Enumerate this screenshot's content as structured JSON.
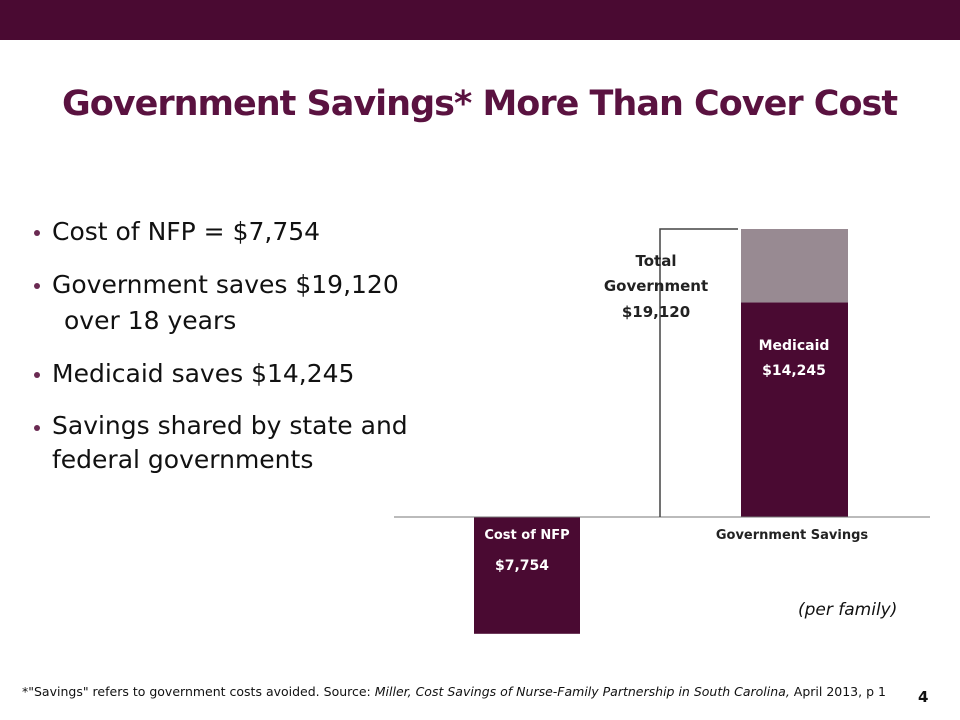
{
  "title": "Government Savings* More Than Cover Cost",
  "bullets": [
    {
      "text": "Cost of NFP = $7,754"
    },
    {
      "text": "Government saves $19,120"
    },
    {
      "text": "over 18 years"
    },
    {
      "text": "Medicaid saves $14,245"
    },
    {
      "text": "Savings shared by state and federal governments"
    }
  ],
  "per_family": "(per family)",
  "footnote": {
    "lead": "*\"Savings\" refers to government costs avoided. Source: ",
    "source_italic": "Miller, Cost Savings of Nurse-Family Partnership in South Carolina,",
    "tail": " April 2013, p 1"
  },
  "page_number": "4",
  "colors": {
    "band": "#4a0a32",
    "title": "#5a1240",
    "bar_dark": "#4a0a32",
    "bar_grey": "#988a92"
  },
  "chart_data": {
    "type": "bar",
    "categories": [
      "Cost of NFP",
      "Government Savings"
    ],
    "value_labels": {
      "cost": "$7,754",
      "medicaid": "Medicaid $14,245",
      "total": "Total Government $19,120"
    },
    "series": [
      {
        "category": "Cost of NFP",
        "segment": "cost",
        "value": -7754
      },
      {
        "category": "Government Savings",
        "segment": "medicaid",
        "value": 14245
      },
      {
        "category": "Government Savings",
        "segment": "other",
        "value": 4875
      }
    ],
    "total_savings": 19120,
    "grid": false,
    "legend": "none"
  }
}
